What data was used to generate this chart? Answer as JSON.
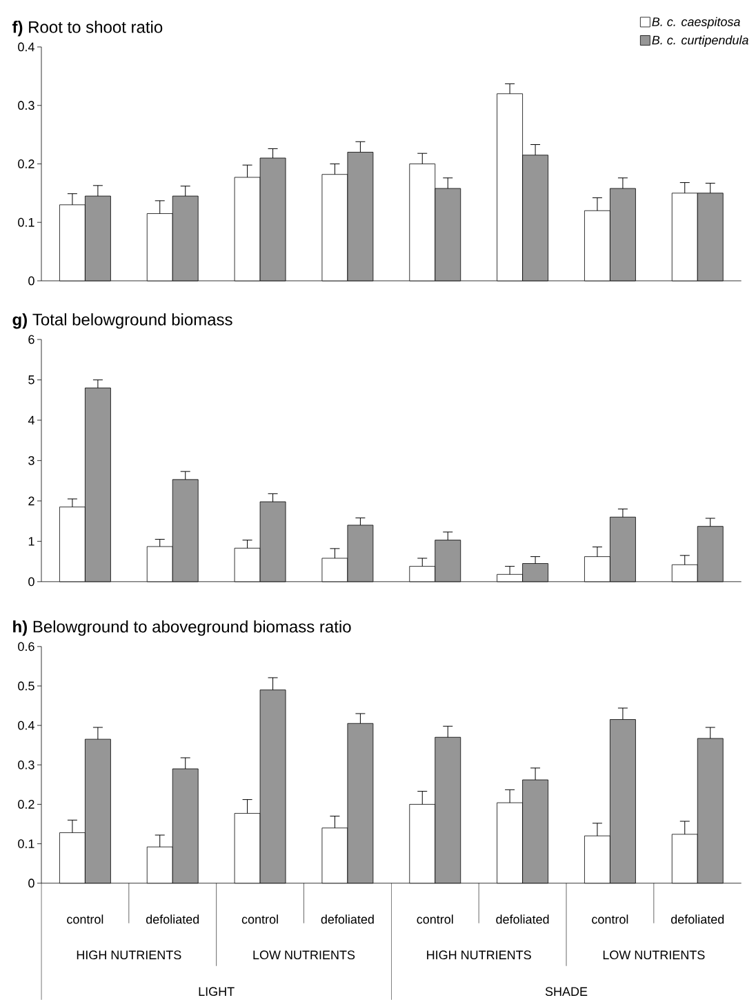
{
  "chart_data": [
    {
      "type": "bar",
      "title": "**f)** Root to shoot ratio",
      "categories": [
        null,
        null,
        null,
        null,
        null,
        null,
        null,
        null
      ],
      "series": [
        {
          "name": "B. c. caespitosa",
          "color": "#ffffff",
          "values": [
            0.13,
            0.115,
            0.177,
            0.182,
            0.2,
            0.32,
            0.12,
            0.15
          ],
          "errors": [
            [
              0.13,
              0.149
            ],
            [
              0.115,
              0.137
            ],
            [
              0.177,
              0.198
            ],
            [
              0.182,
              0.2
            ],
            [
              0.2,
              0.218
            ],
            [
              0.32,
              0.337
            ],
            [
              0.12,
              0.142
            ],
            [
              0.15,
              0.168
            ]
          ]
        },
        {
          "name": "B. c. curtipendula",
          "color": "#969696",
          "values": [
            0.145,
            0.145,
            0.21,
            0.22,
            0.158,
            0.215,
            0.158,
            0.15
          ],
          "errors": [
            [
              0.145,
              0.163
            ],
            [
              0.145,
              0.162
            ],
            [
              0.21,
              0.226
            ],
            [
              0.22,
              0.238
            ],
            [
              0.158,
              0.176
            ],
            [
              0.215,
              0.233
            ],
            [
              0.158,
              0.176
            ],
            [
              0.15,
              0.167
            ]
          ]
        }
      ],
      "ylim": [
        0,
        0.4
      ],
      "yticks": [
        0,
        0.1,
        0.2,
        0.3,
        0.4
      ],
      "tick_labels": "y",
      "legend": "top right"
    },
    {
      "type": "bar",
      "title": "**g)** Total belowground biomass",
      "categories": [
        null,
        null,
        null,
        null,
        null,
        null,
        null,
        null
      ],
      "series": [
        {
          "color": "#ffffff",
          "values": [
            1.85,
            0.87,
            0.83,
            0.58,
            0.38,
            0.18,
            0.62,
            0.42
          ],
          "errors": [
            [
              1.85,
              2.05
            ],
            [
              0.87,
              1.05
            ],
            [
              0.83,
              1.03
            ],
            [
              0.58,
              0.82
            ],
            [
              0.38,
              0.58
            ],
            [
              0.18,
              0.38
            ],
            [
              0.62,
              0.86
            ],
            [
              0.42,
              0.65
            ]
          ]
        },
        {
          "color": "#969696",
          "values": [
            4.8,
            2.53,
            1.98,
            1.4,
            1.03,
            0.45,
            1.6,
            1.37
          ],
          "errors": [
            [
              4.8,
              5.0
            ],
            [
              2.53,
              2.73
            ],
            [
              1.98,
              2.18
            ],
            [
              1.4,
              1.58
            ],
            [
              1.03,
              1.23
            ],
            [
              0.45,
              0.62
            ],
            [
              1.6,
              1.8
            ],
            [
              1.37,
              1.57
            ]
          ]
        }
      ],
      "ylim": [
        0,
        6
      ],
      "yticks": [
        0,
        1,
        2,
        3,
        4,
        5,
        6
      ],
      "tick_labels": "y"
    },
    {
      "type": "bar",
      "title": "**h)** Belowground to aboveground biomass ratio",
      "categories": [
        "control",
        "defoliated",
        "control",
        "defoliated",
        "control",
        "defoliated",
        "control",
        "defoliated"
      ],
      "series": [
        {
          "color": "#ffffff",
          "values": [
            0.128,
            0.092,
            0.177,
            0.14,
            0.2,
            0.204,
            0.12,
            0.124
          ],
          "errors": [
            [
              0.128,
              0.16
            ],
            [
              0.092,
              0.122
            ],
            [
              0.177,
              0.212
            ],
            [
              0.14,
              0.17
            ],
            [
              0.2,
              0.233
            ],
            [
              0.204,
              0.237
            ],
            [
              0.12,
              0.152
            ],
            [
              0.124,
              0.157
            ]
          ]
        },
        {
          "color": "#969696",
          "values": [
            0.365,
            0.29,
            0.49,
            0.405,
            0.37,
            0.262,
            0.415,
            0.367
          ],
          "errors": [
            [
              0.365,
              0.395
            ],
            [
              0.29,
              0.318
            ],
            [
              0.49,
              0.521
            ],
            [
              0.405,
              0.43
            ],
            [
              0.37,
              0.398
            ],
            [
              0.262,
              0.292
            ],
            [
              0.415,
              0.444
            ],
            [
              0.367,
              0.395
            ]
          ]
        }
      ],
      "ylim": [
        0,
        0.6
      ],
      "yticks": [
        0,
        0.1,
        0.2,
        0.3,
        0.4,
        0.5,
        0.6
      ],
      "annotations": [
        "HIGH NUTRIENTS",
        "LOW NUTRIENTS",
        "HIGH NUTRIENTS",
        "LOW NUTRIENTS",
        "LIGHT",
        "SHADE"
      ]
    }
  ]
}
